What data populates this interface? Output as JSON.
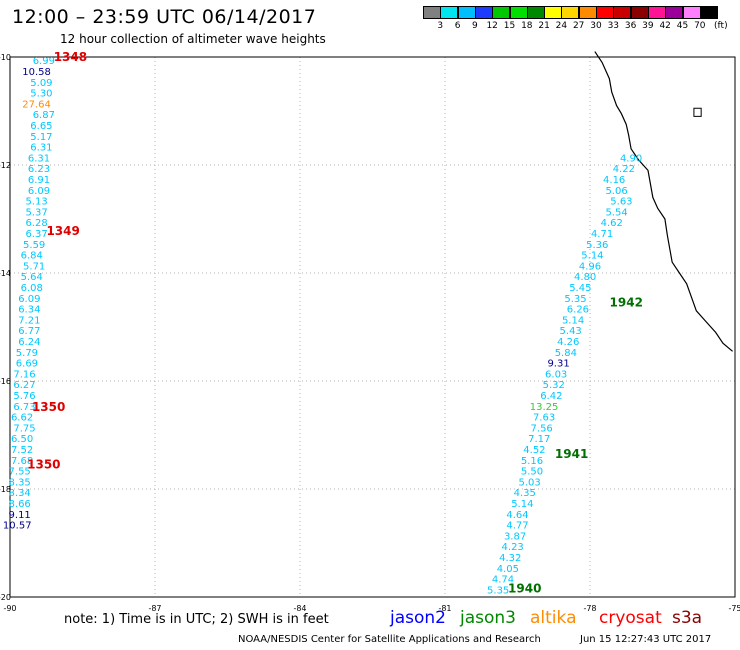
{
  "header": {
    "title": "12:00 – 23:59 UTC 06/14/2017",
    "subtitle": "12 hour collection of altimeter wave heights"
  },
  "colorbar": {
    "unit": "(ft)",
    "swatches": [
      "#808080",
      "#00e5ee",
      "#00bfff",
      "#1e3cff",
      "#00c800",
      "#00e000",
      "#008800",
      "#ffff00",
      "#ffd700",
      "#ff8c00",
      "#ff0000",
      "#c80000",
      "#8b0000",
      "#ff1493",
      "#9b009b",
      "#ff80ff",
      "#000000"
    ],
    "labels": [
      "3",
      "6",
      "9",
      "12",
      "15",
      "18",
      "21",
      "24",
      "27",
      "30",
      "33",
      "36",
      "39",
      "42",
      "45",
      "70"
    ]
  },
  "axes": {
    "lon_labels": [
      "-90",
      "-87",
      "-84",
      "-81",
      "-78",
      "-75"
    ],
    "lat_labels": [
      "-10",
      "-12",
      "-14",
      "-16",
      "-18",
      "-20"
    ]
  },
  "colors": {
    "cyan": "#00c8ff",
    "navy": "#00008b",
    "orange": "#ff8c00",
    "lightgreen": "#32cd32",
    "pass_red": "#e00000",
    "pass_green": "#007000",
    "coast": "#000000",
    "grid": "#b4b4b4"
  },
  "track1": {
    "points": [
      {
        "lon": -89.3,
        "lat": -10.06,
        "v": "6.99",
        "c": "cyan"
      },
      {
        "lon": -89.45,
        "lat": -10.26,
        "v": "10.58",
        "c": "navy"
      },
      {
        "lon": -89.35,
        "lat": -10.46,
        "v": "5.09",
        "c": "cyan"
      },
      {
        "lon": -89.35,
        "lat": -10.66,
        "v": "5.30",
        "c": "cyan"
      },
      {
        "lon": -89.45,
        "lat": -10.86,
        "v": "27.64",
        "c": "orange"
      },
      {
        "lon": -89.3,
        "lat": -11.06,
        "v": "6.87",
        "c": "cyan"
      },
      {
        "lon": -89.35,
        "lat": -11.26,
        "v": "6.65",
        "c": "cyan"
      },
      {
        "lon": -89.35,
        "lat": -11.46,
        "v": "5.17",
        "c": "cyan"
      },
      {
        "lon": -89.35,
        "lat": -11.66,
        "v": "6.31",
        "c": "cyan"
      },
      {
        "lon": -89.4,
        "lat": -11.86,
        "v": "6.31",
        "c": "cyan"
      },
      {
        "lon": -89.4,
        "lat": -12.06,
        "v": "6.23",
        "c": "cyan"
      },
      {
        "lon": -89.4,
        "lat": -12.26,
        "v": "6.91",
        "c": "cyan"
      },
      {
        "lon": -89.4,
        "lat": -12.46,
        "v": "6.09",
        "c": "cyan"
      },
      {
        "lon": -89.45,
        "lat": -12.66,
        "v": "5.13",
        "c": "cyan"
      },
      {
        "lon": -89.45,
        "lat": -12.86,
        "v": "5.37",
        "c": "cyan"
      },
      {
        "lon": -89.45,
        "lat": -13.06,
        "v": "6.28",
        "c": "cyan"
      },
      {
        "lon": -89.45,
        "lat": -13.26,
        "v": "6.37",
        "c": "cyan"
      },
      {
        "lon": -89.5,
        "lat": -13.46,
        "v": "5.59",
        "c": "cyan"
      },
      {
        "lon": -89.55,
        "lat": -13.66,
        "v": "6.84",
        "c": "cyan"
      },
      {
        "lon": -89.5,
        "lat": -13.86,
        "v": "5.71",
        "c": "cyan"
      },
      {
        "lon": -89.55,
        "lat": -14.06,
        "v": "5.64",
        "c": "cyan"
      },
      {
        "lon": -89.55,
        "lat": -14.26,
        "v": "6.08",
        "c": "cyan"
      },
      {
        "lon": -89.6,
        "lat": -14.46,
        "v": "6.09",
        "c": "cyan"
      },
      {
        "lon": -89.6,
        "lat": -14.66,
        "v": "6.34",
        "c": "cyan"
      },
      {
        "lon": -89.6,
        "lat": -14.86,
        "v": "7.21",
        "c": "cyan"
      },
      {
        "lon": -89.6,
        "lat": -15.06,
        "v": "6.77",
        "c": "cyan"
      },
      {
        "lon": -89.6,
        "lat": -15.26,
        "v": "6.24",
        "c": "cyan"
      },
      {
        "lon": -89.65,
        "lat": -15.46,
        "v": "5.79",
        "c": "cyan"
      },
      {
        "lon": -89.65,
        "lat": -15.66,
        "v": "6.69",
        "c": "cyan"
      },
      {
        "lon": -89.7,
        "lat": -15.86,
        "v": "7.16",
        "c": "cyan"
      },
      {
        "lon": -89.7,
        "lat": -16.06,
        "v": "6.27",
        "c": "cyan"
      },
      {
        "lon": -89.7,
        "lat": -16.26,
        "v": "5.76",
        "c": "cyan"
      },
      {
        "lon": -89.7,
        "lat": -16.46,
        "v": "6.73",
        "c": "cyan"
      },
      {
        "lon": -89.75,
        "lat": -16.66,
        "v": "6.62",
        "c": "cyan"
      },
      {
        "lon": -89.7,
        "lat": -16.86,
        "v": "7.75",
        "c": "cyan"
      },
      {
        "lon": -89.75,
        "lat": -17.06,
        "v": "6.50",
        "c": "cyan"
      },
      {
        "lon": -89.75,
        "lat": -17.26,
        "v": "7.52",
        "c": "cyan"
      },
      {
        "lon": -89.75,
        "lat": -17.46,
        "v": "7.68",
        "c": "cyan"
      },
      {
        "lon": -89.8,
        "lat": -17.66,
        "v": "7.55",
        "c": "cyan"
      },
      {
        "lon": -89.8,
        "lat": -17.86,
        "v": "8.35",
        "c": "cyan"
      },
      {
        "lon": -89.8,
        "lat": -18.06,
        "v": "8.34",
        "c": "cyan"
      },
      {
        "lon": -89.8,
        "lat": -18.26,
        "v": "8.66",
        "c": "cyan"
      },
      {
        "lon": -89.8,
        "lat": -18.46,
        "v": "9.11",
        "c": "navy"
      },
      {
        "lon": -89.85,
        "lat": -18.66,
        "v": "10.57",
        "c": "navy"
      }
    ],
    "labels": [
      {
        "lon": -88.75,
        "lat": -10.0,
        "t": "1348",
        "c": "pass_red"
      },
      {
        "lon": -88.9,
        "lat": -13.22,
        "t": "1349",
        "c": "pass_red"
      },
      {
        "lon": -89.2,
        "lat": -16.48,
        "t": "1350",
        "c": "pass_red"
      },
      {
        "lon": -89.3,
        "lat": -17.55,
        "t": "1350",
        "c": "pass_red"
      }
    ]
  },
  "track2": {
    "points": [
      {
        "lon": -77.15,
        "lat": -11.86,
        "v": "4.90",
        "c": "cyan"
      },
      {
        "lon": -77.3,
        "lat": -12.06,
        "v": "4.22",
        "c": "cyan"
      },
      {
        "lon": -77.5,
        "lat": -12.26,
        "v": "4.16",
        "c": "cyan"
      },
      {
        "lon": -77.45,
        "lat": -12.46,
        "v": "5.06",
        "c": "cyan"
      },
      {
        "lon": -77.35,
        "lat": -12.66,
        "v": "5.63",
        "c": "cyan"
      },
      {
        "lon": -77.45,
        "lat": -12.86,
        "v": "5.54",
        "c": "cyan"
      },
      {
        "lon": -77.55,
        "lat": -13.06,
        "v": "4.62",
        "c": "cyan"
      },
      {
        "lon": -77.75,
        "lat": -13.26,
        "v": "4.71",
        "c": "cyan"
      },
      {
        "lon": -77.85,
        "lat": -13.46,
        "v": "5.36",
        "c": "cyan"
      },
      {
        "lon": -77.95,
        "lat": -13.66,
        "v": "5.14",
        "c": "cyan"
      },
      {
        "lon": -78.0,
        "lat": -13.86,
        "v": "4.96",
        "c": "cyan"
      },
      {
        "lon": -78.1,
        "lat": -14.06,
        "v": "4.80",
        "c": "cyan"
      },
      {
        "lon": -78.2,
        "lat": -14.26,
        "v": "5.45",
        "c": "cyan"
      },
      {
        "lon": -78.3,
        "lat": -14.46,
        "v": "5.35",
        "c": "cyan"
      },
      {
        "lon": -78.25,
        "lat": -14.66,
        "v": "6.26",
        "c": "cyan"
      },
      {
        "lon": -78.35,
        "lat": -14.86,
        "v": "5.14",
        "c": "cyan"
      },
      {
        "lon": -78.4,
        "lat": -15.06,
        "v": "5.43",
        "c": "cyan"
      },
      {
        "lon": -78.45,
        "lat": -15.26,
        "v": "4.26",
        "c": "cyan"
      },
      {
        "lon": -78.5,
        "lat": -15.46,
        "v": "5.84",
        "c": "cyan"
      },
      {
        "lon": -78.65,
        "lat": -15.66,
        "v": "9.31",
        "c": "navy"
      },
      {
        "lon": -78.7,
        "lat": -15.86,
        "v": "6.03",
        "c": "cyan"
      },
      {
        "lon": -78.75,
        "lat": -16.06,
        "v": "5.32",
        "c": "cyan"
      },
      {
        "lon": -78.8,
        "lat": -16.26,
        "v": "6.42",
        "c": "cyan"
      },
      {
        "lon": -78.95,
        "lat": -16.46,
        "v": "13.25",
        "c": "lightgreen"
      },
      {
        "lon": -78.95,
        "lat": -16.66,
        "v": "7.63",
        "c": "cyan"
      },
      {
        "lon": -79.0,
        "lat": -16.86,
        "v": "7.56",
        "c": "cyan"
      },
      {
        "lon": -79.05,
        "lat": -17.06,
        "v": "7.17",
        "c": "cyan"
      },
      {
        "lon": -79.15,
        "lat": -17.26,
        "v": "4.52",
        "c": "cyan"
      },
      {
        "lon": -79.2,
        "lat": -17.46,
        "v": "5.16",
        "c": "cyan"
      },
      {
        "lon": -79.2,
        "lat": -17.66,
        "v": "5.50",
        "c": "cyan"
      },
      {
        "lon": -79.25,
        "lat": -17.86,
        "v": "5.03",
        "c": "cyan"
      },
      {
        "lon": -79.35,
        "lat": -18.06,
        "v": "4.35",
        "c": "cyan"
      },
      {
        "lon": -79.4,
        "lat": -18.26,
        "v": "5.14",
        "c": "cyan"
      },
      {
        "lon": -79.5,
        "lat": -18.46,
        "v": "4.64",
        "c": "cyan"
      },
      {
        "lon": -79.5,
        "lat": -18.66,
        "v": "4.77",
        "c": "cyan"
      },
      {
        "lon": -79.55,
        "lat": -18.86,
        "v": "3.87",
        "c": "cyan"
      },
      {
        "lon": -79.6,
        "lat": -19.06,
        "v": "4.23",
        "c": "cyan"
      },
      {
        "lon": -79.65,
        "lat": -19.26,
        "v": "4.32",
        "c": "cyan"
      },
      {
        "lon": -79.7,
        "lat": -19.46,
        "v": "4.05",
        "c": "cyan"
      },
      {
        "lon": -79.8,
        "lat": -19.66,
        "v": "4.74",
        "c": "cyan"
      },
      {
        "lon": -79.9,
        "lat": -19.86,
        "v": "5.35",
        "c": "cyan"
      }
    ],
    "labels": [
      {
        "lon": -77.25,
        "lat": -14.55,
        "t": "1942",
        "c": "pass_green"
      },
      {
        "lon": -78.38,
        "lat": -17.35,
        "t": "1941",
        "c": "pass_green"
      },
      {
        "lon": -79.35,
        "lat": -19.84,
        "t": "1940",
        "c": "pass_green"
      }
    ]
  },
  "coastline": [
    [
      -77.9,
      -9.9
    ],
    [
      -77.75,
      -10.1
    ],
    [
      -77.6,
      -10.4
    ],
    [
      -77.55,
      -10.65
    ],
    [
      -77.45,
      -10.9
    ],
    [
      -77.35,
      -11.05
    ],
    [
      -77.25,
      -11.25
    ],
    [
      -77.2,
      -11.45
    ],
    [
      -77.15,
      -11.7
    ],
    [
      -77.0,
      -11.9
    ],
    [
      -76.8,
      -12.1
    ],
    [
      -76.75,
      -12.35
    ],
    [
      -76.7,
      -12.6
    ],
    [
      -76.6,
      -12.8
    ],
    [
      -76.45,
      -13.0
    ],
    [
      -76.4,
      -13.3
    ],
    [
      -76.35,
      -13.55
    ],
    [
      -76.3,
      -13.8
    ],
    [
      -76.15,
      -14.0
    ],
    [
      -76.0,
      -14.2
    ],
    [
      -75.9,
      -14.45
    ],
    [
      -75.8,
      -14.7
    ],
    [
      -75.6,
      -14.9
    ],
    [
      -75.4,
      -15.1
    ],
    [
      -75.25,
      -15.3
    ],
    [
      -75.05,
      -15.45
    ]
  ],
  "lake": [
    [
      -75.85,
      -10.95
    ],
    [
      -75.7,
      -10.95
    ],
    [
      -75.7,
      -11.1
    ],
    [
      -75.85,
      -11.1
    ]
  ],
  "footer": {
    "note": "note:  1) Time is in UTC;  2) SWH is in feet",
    "satellites": [
      {
        "name": "jason2",
        "color": "#0000ff"
      },
      {
        "name": "jason3",
        "color": "#008800"
      },
      {
        "name": "altika",
        "color": "#ff8c00"
      },
      {
        "name": "cryosat",
        "color": "#ff0000"
      },
      {
        "name": "s3a",
        "color": "#8b0000"
      }
    ],
    "credit": "NOAA/NESDIS Center for Satellite Applications and Research",
    "timestamp": "Jun 15 12:27:43 UTC 2017"
  }
}
